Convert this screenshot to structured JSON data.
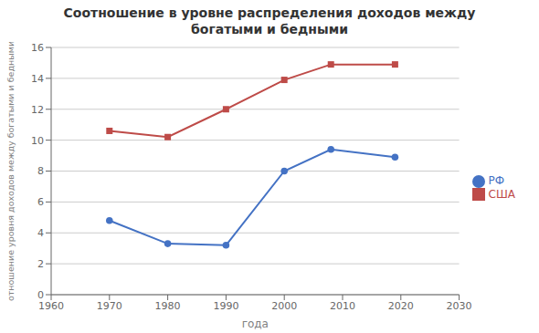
{
  "chart_data": {
    "type": "line",
    "title": "Соотношение в уровне распределения доходов между\nбогатыми и бедными",
    "x_label": "года",
    "y_label": "отношение уровня доходов между богатыми и бедными",
    "x": [
      1970,
      1980,
      1990,
      2000,
      2008,
      2019
    ],
    "series": [
      {
        "name": "РФ",
        "color": "#4472C4",
        "marker": "circle",
        "values": [
          4.8,
          3.3,
          3.2,
          8.0,
          9.4,
          8.9
        ]
      },
      {
        "name": "США",
        "color": "#BE4B48",
        "marker": "square",
        "values": [
          10.6,
          10.2,
          12.0,
          13.9,
          14.9,
          14.9
        ]
      }
    ],
    "xlim": [
      1960,
      2030
    ],
    "ylim": [
      0,
      16
    ],
    "xticks": [
      1960,
      1970,
      1980,
      1990,
      2000,
      2010,
      2020,
      2030
    ],
    "yticks": [
      0,
      2,
      4,
      6,
      8,
      10,
      12,
      14,
      16
    ],
    "grid": true,
    "legend": "right"
  }
}
